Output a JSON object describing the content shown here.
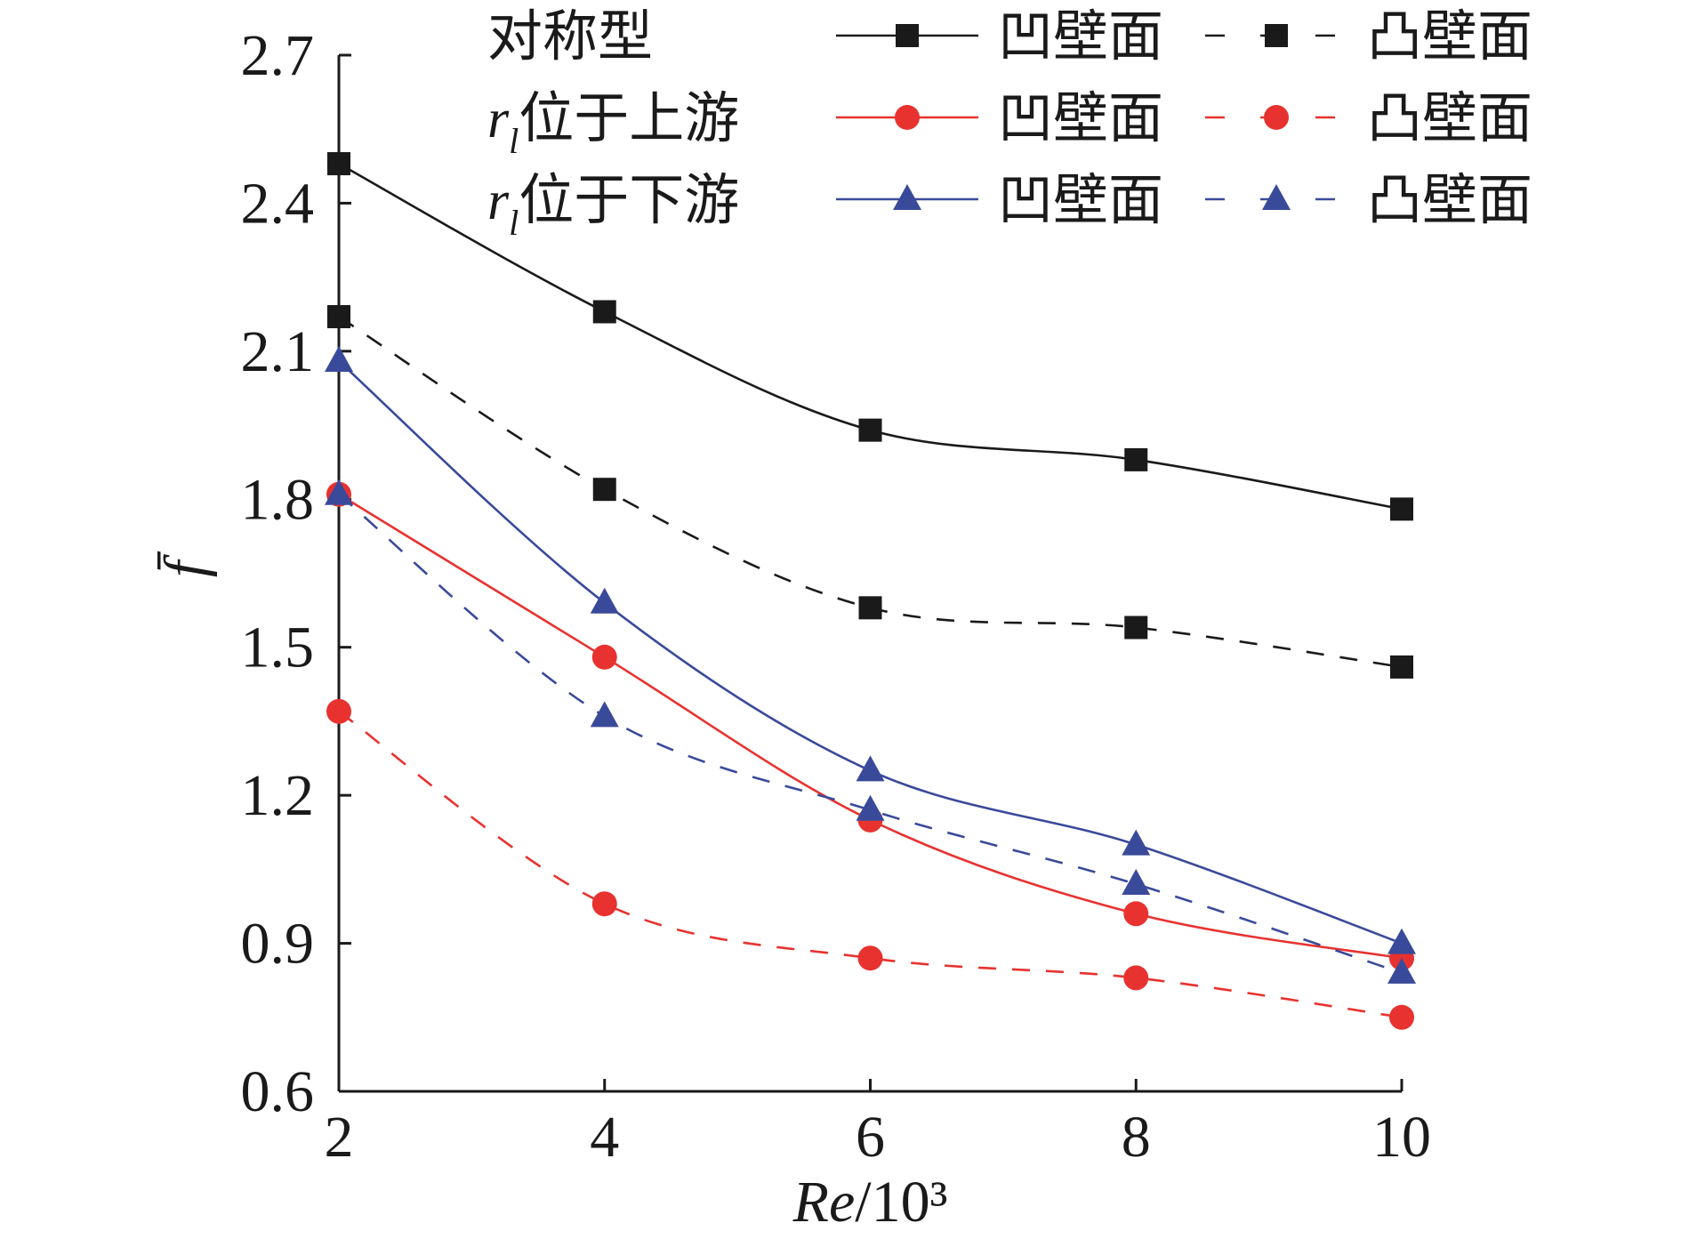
{
  "chart_data": {
    "type": "line",
    "title": "",
    "xlabel": "Re/10³",
    "ylabel": "f̄",
    "x": [
      2,
      4,
      6,
      8,
      10
    ],
    "xlim": [
      2,
      10
    ],
    "ylim": [
      0.6,
      2.7
    ],
    "xticks": [
      "2",
      "4",
      "6",
      "8",
      "10"
    ],
    "yticks": [
      "0.6",
      "0.9",
      "1.2",
      "1.5",
      "1.8",
      "2.1",
      "2.4",
      "2.7"
    ],
    "grid": false,
    "legend_position": "top",
    "legend_groups": [
      {
        "label": "对称型",
        "label_prefix": ""
      },
      {
        "label": "位于上游",
        "label_prefix": "r",
        "label_subscript": "l"
      },
      {
        "label": "位于下游",
        "label_prefix": "r",
        "label_subscript": "l"
      }
    ],
    "series": [
      {
        "group": 0,
        "name": "凹壁面",
        "color": "#1a1a1a",
        "dash": "solid",
        "marker": "square",
        "values": [
          2.48,
          2.18,
          1.94,
          1.88,
          1.78
        ]
      },
      {
        "group": 0,
        "name": "凸壁面",
        "color": "#1a1a1a",
        "dash": "dashed",
        "marker": "square",
        "values": [
          2.17,
          1.82,
          1.58,
          1.54,
          1.46
        ]
      },
      {
        "group": 1,
        "name": "凹壁面",
        "color": "#e8322f",
        "dash": "solid",
        "marker": "circle",
        "values": [
          1.81,
          1.48,
          1.15,
          0.96,
          0.87
        ]
      },
      {
        "group": 1,
        "name": "凸壁面",
        "color": "#e8322f",
        "dash": "dashed",
        "marker": "circle",
        "values": [
          1.37,
          0.98,
          0.87,
          0.83,
          0.75
        ]
      },
      {
        "group": 2,
        "name": "凹壁面",
        "color": "#3a4a9a",
        "dash": "solid",
        "marker": "triangle",
        "values": [
          2.08,
          1.59,
          1.25,
          1.1,
          0.9
        ]
      },
      {
        "group": 2,
        "name": "凸壁面",
        "color": "#3a4a9a",
        "dash": "dashed",
        "marker": "triangle",
        "values": [
          1.81,
          1.36,
          1.17,
          1.02,
          0.84
        ]
      }
    ]
  }
}
